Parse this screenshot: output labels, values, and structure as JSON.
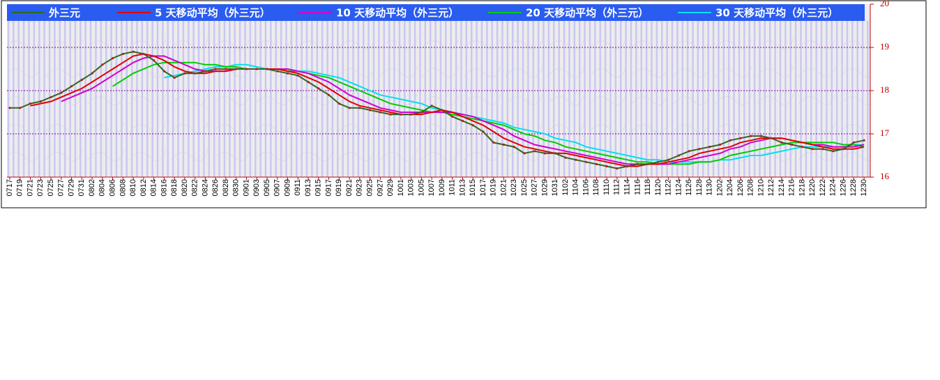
{
  "chart_data": {
    "type": "line",
    "categories": [
      "0717",
      "0719",
      "0721",
      "0723",
      "0725",
      "0727",
      "0729",
      "0731",
      "0802",
      "0804",
      "0806",
      "0808",
      "0810",
      "0812",
      "0814",
      "0816",
      "0818",
      "0820",
      "0822",
      "0824",
      "0826",
      "0828",
      "0830",
      "0901",
      "0903",
      "0905",
      "0907",
      "0909",
      "0911",
      "0913",
      "0915",
      "0917",
      "0919",
      "0921",
      "0923",
      "0925",
      "0927",
      "0929",
      "1001",
      "1003",
      "1005",
      "1007",
      "1009",
      "1011",
      "1013",
      "1015",
      "1017",
      "1019",
      "1021",
      "1023",
      "1025",
      "1027",
      "1029",
      "1031",
      "1102",
      "1104",
      "1106",
      "1108",
      "1110",
      "1112",
      "1114",
      "1116",
      "1118",
      "1120",
      "1122",
      "1124",
      "1126",
      "1128",
      "1130",
      "1202",
      "1204",
      "1206",
      "1208",
      "1210",
      "1212",
      "1214",
      "1216",
      "1218",
      "1220",
      "1222",
      "1224",
      "1226",
      "1228",
      "1230"
    ],
    "series": [
      {
        "name": "外三元",
        "color": "#2f6a1a",
        "values": [
          17.6,
          17.6,
          17.7,
          17.75,
          17.85,
          17.95,
          18.1,
          18.25,
          18.4,
          18.6,
          18.75,
          18.85,
          18.9,
          18.85,
          18.7,
          18.45,
          18.3,
          18.4,
          18.4,
          18.45,
          18.5,
          18.5,
          18.5,
          18.5,
          18.5,
          18.5,
          18.45,
          18.4,
          18.35,
          18.2,
          18.05,
          17.9,
          17.7,
          17.6,
          17.6,
          17.55,
          17.5,
          17.45,
          17.45,
          17.45,
          17.5,
          17.65,
          17.55,
          17.4,
          17.3,
          17.2,
          17.05,
          16.8,
          16.75,
          16.7,
          16.55,
          16.6,
          16.55,
          16.55,
          16.45,
          16.4,
          16.35,
          16.3,
          16.25,
          16.2,
          16.25,
          16.3,
          16.3,
          16.35,
          16.4,
          16.5,
          16.6,
          16.65,
          16.7,
          16.75,
          16.85,
          16.9,
          16.95,
          16.95,
          16.9,
          16.8,
          16.75,
          16.7,
          16.65,
          16.65,
          16.6,
          16.65,
          16.8,
          16.85
        ]
      },
      {
        "name": "5 天移动平均（外三元）",
        "color": "#e00000",
        "values": [
          null,
          null,
          17.65,
          17.7,
          17.75,
          17.85,
          17.95,
          18.05,
          18.2,
          18.35,
          18.5,
          18.65,
          18.8,
          18.85,
          18.8,
          18.7,
          18.55,
          18.45,
          18.4,
          18.4,
          18.45,
          18.45,
          18.5,
          18.5,
          18.5,
          18.5,
          18.5,
          18.45,
          18.4,
          18.3,
          18.2,
          18.05,
          17.9,
          17.75,
          17.65,
          17.6,
          17.55,
          17.5,
          17.45,
          17.45,
          17.45,
          17.5,
          17.55,
          17.5,
          17.4,
          17.3,
          17.2,
          17.05,
          16.9,
          16.8,
          16.7,
          16.65,
          16.6,
          16.55,
          16.55,
          16.5,
          16.45,
          16.4,
          16.35,
          16.3,
          16.25,
          16.25,
          16.3,
          16.3,
          16.35,
          16.4,
          16.45,
          16.55,
          16.6,
          16.65,
          16.7,
          16.8,
          16.85,
          16.9,
          16.9,
          16.9,
          16.85,
          16.8,
          16.75,
          16.7,
          16.65,
          16.65,
          16.65,
          16.7
        ]
      },
      {
        "name": "10 天移动平均（外三元）",
        "color": "#d000d0",
        "values": [
          null,
          null,
          null,
          null,
          null,
          17.75,
          17.85,
          17.95,
          18.05,
          18.2,
          18.35,
          18.5,
          18.65,
          18.75,
          18.8,
          18.8,
          18.7,
          18.6,
          18.5,
          18.45,
          18.45,
          18.45,
          18.5,
          18.5,
          18.5,
          18.5,
          18.5,
          18.5,
          18.45,
          18.4,
          18.3,
          18.2,
          18.05,
          17.9,
          17.8,
          17.7,
          17.6,
          17.55,
          17.5,
          17.5,
          17.5,
          17.5,
          17.5,
          17.5,
          17.45,
          17.4,
          17.3,
          17.2,
          17.1,
          16.95,
          16.85,
          16.75,
          16.7,
          16.65,
          16.6,
          16.55,
          16.5,
          16.45,
          16.4,
          16.35,
          16.3,
          16.3,
          16.3,
          16.3,
          16.3,
          16.35,
          16.4,
          16.45,
          16.5,
          16.55,
          16.65,
          16.7,
          16.8,
          16.85,
          16.9,
          16.9,
          16.85,
          16.8,
          16.75,
          16.75,
          16.7,
          16.7,
          16.7,
          16.75
        ]
      },
      {
        "name": "20 天移动平均（外三元）",
        "color": "#00cc00",
        "values": [
          null,
          null,
          null,
          null,
          null,
          null,
          null,
          null,
          null,
          null,
          18.1,
          18.25,
          18.4,
          18.5,
          18.6,
          18.65,
          18.65,
          18.65,
          18.65,
          18.6,
          18.6,
          18.55,
          18.55,
          18.5,
          18.5,
          18.5,
          18.5,
          18.45,
          18.45,
          18.4,
          18.35,
          18.3,
          18.2,
          18.1,
          18.0,
          17.9,
          17.8,
          17.7,
          17.65,
          17.6,
          17.55,
          17.5,
          17.5,
          17.45,
          17.4,
          17.35,
          17.3,
          17.25,
          17.2,
          17.1,
          17.0,
          16.95,
          16.85,
          16.8,
          16.7,
          16.65,
          16.6,
          16.55,
          16.5,
          16.45,
          16.4,
          16.35,
          16.35,
          16.3,
          16.3,
          16.3,
          16.3,
          16.35,
          16.35,
          16.4,
          16.5,
          16.55,
          16.6,
          16.65,
          16.7,
          16.75,
          16.8,
          16.8,
          16.8,
          16.8,
          16.8,
          16.75,
          16.75,
          16.7
        ]
      },
      {
        "name": "30 天移动平均（外三元）",
        "color": "#00e0f0",
        "values": [
          null,
          null,
          null,
          null,
          null,
          null,
          null,
          null,
          null,
          null,
          null,
          null,
          null,
          null,
          null,
          18.3,
          18.35,
          18.4,
          18.45,
          18.5,
          18.55,
          18.55,
          18.6,
          18.6,
          18.55,
          18.5,
          18.5,
          18.5,
          18.45,
          18.45,
          18.4,
          18.35,
          18.3,
          18.2,
          18.1,
          18.0,
          17.9,
          17.85,
          17.8,
          17.75,
          17.7,
          17.6,
          17.55,
          17.5,
          17.45,
          17.4,
          17.35,
          17.3,
          17.25,
          17.15,
          17.1,
          17.05,
          17.0,
          16.9,
          16.85,
          16.8,
          16.7,
          16.65,
          16.6,
          16.55,
          16.5,
          16.45,
          16.4,
          16.4,
          16.35,
          16.35,
          16.35,
          16.35,
          16.35,
          16.4,
          16.4,
          16.45,
          16.5,
          16.5,
          16.55,
          16.6,
          16.65,
          16.7,
          16.7,
          16.7,
          16.7,
          16.7,
          16.75,
          16.75
        ]
      }
    ],
    "ylim": [
      16,
      20
    ],
    "yticks": [
      16,
      17,
      18,
      19,
      20
    ],
    "grid": true
  }
}
